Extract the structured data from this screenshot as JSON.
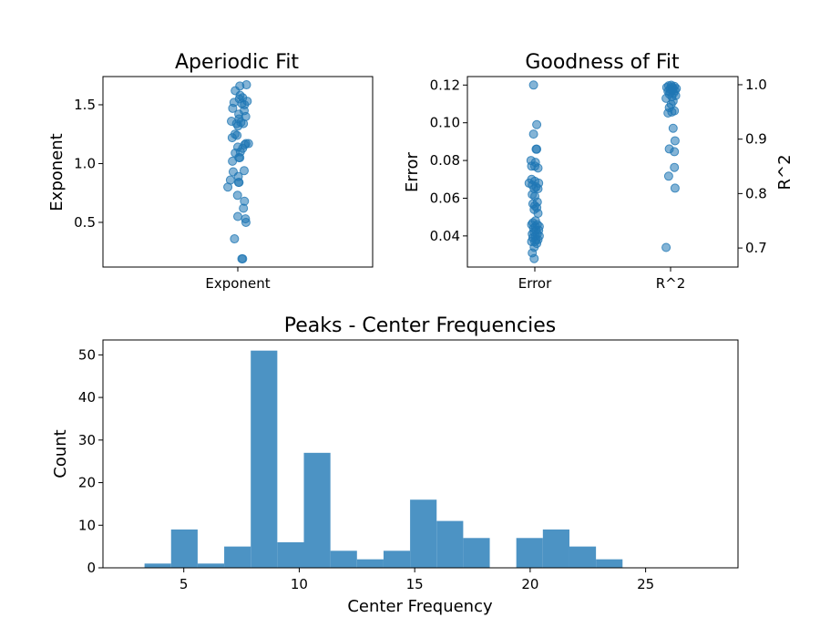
{
  "chart_data": [
    {
      "type": "scatter",
      "title": "Aperiodic Fit",
      "xlabel": "",
      "ylabel": "Exponent",
      "categories": [
        "Exponent"
      ],
      "ylim": [
        0.12,
        1.74
      ],
      "yticks": [
        0.5,
        1.0,
        1.5
      ],
      "ytick_labels": [
        "0.5",
        "1.0",
        "1.5"
      ],
      "color": "#1f77b4",
      "series": [
        {
          "category": "Exponent",
          "values": [
            1.66,
            1.67,
            1.62,
            1.58,
            1.56,
            1.55,
            1.53,
            1.52,
            1.51,
            1.5,
            1.47,
            1.45,
            1.42,
            1.4,
            1.38,
            1.36,
            1.35,
            1.34,
            1.34,
            1.32,
            1.25,
            1.24,
            1.22,
            1.17,
            1.17,
            1.16,
            1.14,
            1.13,
            1.1,
            1.09,
            1.05,
            1.05,
            1.02,
            0.94,
            0.93,
            0.89,
            0.86,
            0.84,
            0.84,
            0.8,
            0.73,
            0.68,
            0.62,
            0.55,
            0.53,
            0.5,
            0.36,
            0.19,
            0.19
          ],
          "jitter": [
            0.16,
            0.68,
            -0.2,
            0.18,
            0.38,
            0.12,
            0.74,
            -0.3,
            0.32,
            0.52,
            -0.4,
            0.5,
            0.08,
            0.62,
            0.1,
            -0.5,
            0.24,
            -0.1,
            0.44,
            0.02,
            -0.22,
            -0.06,
            -0.44,
            0.84,
            0.64,
            0.54,
            0.0,
            0.38,
            0.2,
            -0.2,
            0.08,
            0.16,
            -0.42,
            0.5,
            -0.36,
            0.04,
            -0.58,
            0.06,
            0.1,
            -0.78,
            -0.02,
            0.52,
            0.44,
            0.0,
            0.6,
            0.64,
            -0.26,
            0.32,
            0.38
          ]
        }
      ]
    },
    {
      "type": "scatter",
      "title": "Goodness of Fit",
      "xlabel": "",
      "categories": [
        "Error",
        "R^2"
      ],
      "left_axis": {
        "label": "Error",
        "ylim": [
          0.0235,
          0.1245
        ],
        "yticks": [
          0.04,
          0.06,
          0.08,
          0.1,
          0.12
        ],
        "ytick_labels": [
          "0.04",
          "0.06",
          "0.08",
          "0.10",
          "0.12"
        ]
      },
      "right_axis": {
        "label": "R^2",
        "ylim": [
          0.665,
          1.015
        ],
        "yticks": [
          0.7,
          0.8,
          0.9,
          1.0
        ],
        "ytick_labels": [
          "0.7",
          "0.8",
          "0.9",
          "1.0"
        ]
      },
      "color": "#1f77b4",
      "series": [
        {
          "category": "Error",
          "axis": "left",
          "values": [
            0.12,
            0.099,
            0.094,
            0.086,
            0.086,
            0.08,
            0.079,
            0.077,
            0.077,
            0.076,
            0.07,
            0.069,
            0.068,
            0.068,
            0.067,
            0.066,
            0.065,
            0.065,
            0.062,
            0.061,
            0.058,
            0.057,
            0.056,
            0.055,
            0.054,
            0.052,
            0.048,
            0.047,
            0.046,
            0.046,
            0.045,
            0.045,
            0.044,
            0.043,
            0.043,
            0.042,
            0.041,
            0.041,
            0.04,
            0.04,
            0.039,
            0.038,
            0.038,
            0.037,
            0.037,
            0.036,
            0.034,
            0.031,
            0.028
          ],
          "jitter": [
            -0.1,
            0.15,
            -0.1,
            0.1,
            0.15,
            -0.3,
            0.05,
            0.0,
            -0.25,
            0.25,
            -0.25,
            0.0,
            0.3,
            -0.45,
            -0.2,
            0.1,
            -0.05,
            0.25,
            -0.2,
            0.0,
            0.2,
            -0.15,
            0.0,
            0.15,
            -0.05,
            0.25,
            0.05,
            -0.15,
            0.2,
            -0.25,
            0.05,
            0.35,
            -0.1,
            0.1,
            0.3,
            -0.05,
            0.2,
            -0.2,
            0.35,
            0.05,
            -0.15,
            0.1,
            0.25,
            -0.25,
            0.0,
            0.15,
            -0.05,
            -0.2,
            -0.05
          ]
        },
        {
          "category": "R^2",
          "axis": "right",
          "values": [
            0.999,
            0.998,
            0.997,
            0.996,
            0.995,
            0.994,
            0.993,
            0.992,
            0.99,
            0.989,
            0.988,
            0.986,
            0.985,
            0.983,
            0.98,
            0.978,
            0.975,
            0.97,
            0.964,
            0.958,
            0.952,
            0.95,
            0.948,
            0.92,
            0.897,
            0.882,
            0.877,
            0.848,
            0.832,
            0.81,
            0.701
          ],
          "jitter": [
            0.05,
            -0.15,
            0.3,
            0.1,
            -0.3,
            0.2,
            0.45,
            -0.05,
            0.15,
            0.35,
            -0.2,
            0.0,
            0.25,
            -0.1,
            0.4,
            0.1,
            -0.35,
            0.2,
            0.05,
            -0.1,
            0.3,
            0.1,
            -0.2,
            0.2,
            0.35,
            -0.1,
            0.3,
            0.3,
            -0.15,
            0.35,
            -0.35
          ]
        }
      ]
    },
    {
      "type": "bar",
      "title": "Peaks - Center Frequencies",
      "xlabel": "Center Frequency",
      "ylabel": "Count",
      "xlim": [
        1.5,
        29.0
      ],
      "ylim": [
        0,
        53.5
      ],
      "xticks": [
        5,
        10,
        15,
        20,
        25
      ],
      "xtick_labels": [
        "5",
        "10",
        "15",
        "20",
        "25"
      ],
      "yticks": [
        0,
        10,
        20,
        30,
        40,
        50
      ],
      "ytick_labels": [
        "0",
        "10",
        "20",
        "30",
        "40",
        "50"
      ],
      "color": "#4c93c4",
      "bin_edges": [
        3.3,
        4.45,
        5.6,
        6.75,
        7.9,
        9.05,
        10.2,
        11.35,
        12.5,
        13.65,
        14.8,
        15.95,
        17.1,
        18.25,
        19.4,
        20.55,
        21.7,
        22.85,
        24.0
      ],
      "values": [
        1,
        9,
        1,
        5,
        51,
        6,
        27,
        4,
        2,
        4,
        16,
        11,
        7,
        0,
        7,
        9,
        5,
        2
      ]
    }
  ]
}
